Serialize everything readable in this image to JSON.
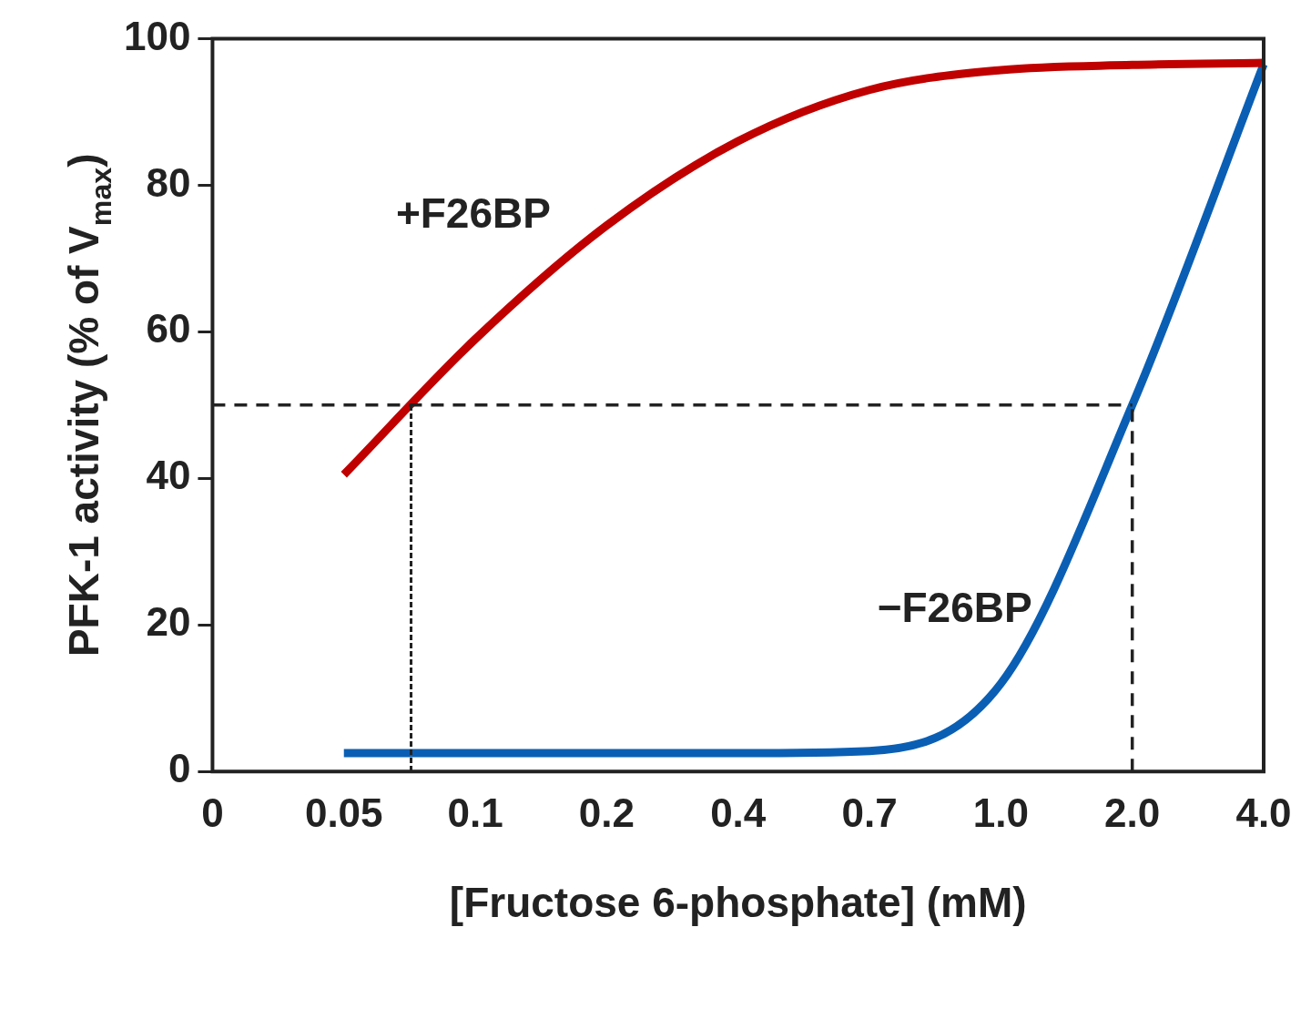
{
  "chart_data": {
    "type": "line",
    "xlabel": "[Fructose 6-phosphate] (mM)",
    "ylabel": "PFK-1 activity (% of V$_{max}$)",
    "categories": [
      "0",
      "0.05",
      "0.1",
      "0.2",
      "0.4",
      "0.7",
      "1.0",
      "2.0",
      "4.0"
    ],
    "series": [
      {
        "name": "+F26BP",
        "color": "#c00000",
        "values": [
          null,
          40.5,
          59,
          74.5,
          86,
          93,
          95.7,
          96.4,
          96.7
        ]
      },
      {
        "name": "−F26BP",
        "color": "#0a5fb4",
        "values": [
          null,
          2.5,
          2.5,
          2.5,
          2.5,
          2.8,
          12,
          50,
          96.5
        ]
      }
    ],
    "ylim": [
      0,
      100
    ],
    "yticks": [
      0,
      20,
      40,
      60,
      80,
      100
    ],
    "grid": false,
    "legend": false,
    "marker": "none",
    "line_style": "solid",
    "ref_lines": [
      {
        "axis": "y",
        "value": 50,
        "color": "#222222",
        "line_style": "dashed"
      },
      {
        "axis": "x",
        "value": "2.0",
        "color": "#222222",
        "line_style": "dashed"
      }
    ]
  }
}
